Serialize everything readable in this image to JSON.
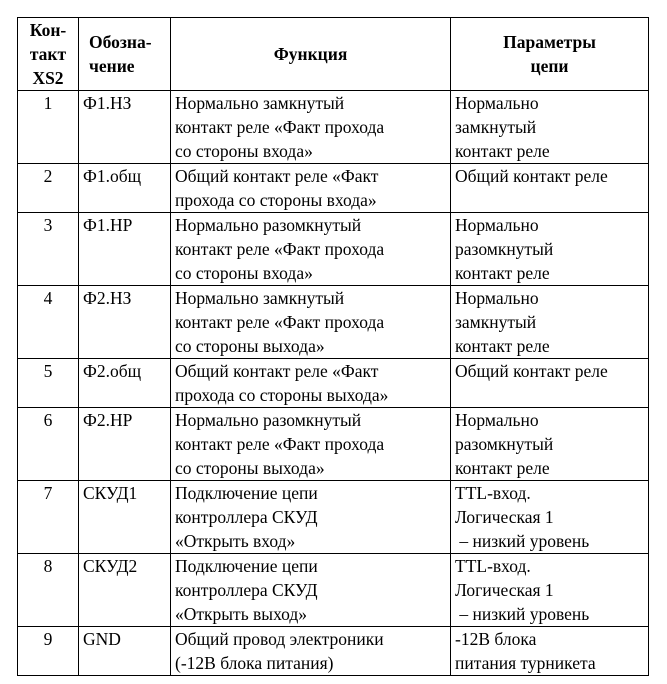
{
  "table": {
    "header": [
      [
        "Кон-",
        "такт",
        "XS2"
      ],
      [
        "Обозна-",
        "чение"
      ],
      [
        "Функция"
      ],
      [
        "Параметры",
        "цепи"
      ]
    ],
    "rows": [
      [
        [
          "1"
        ],
        [
          "Ф1.НЗ"
        ],
        [
          "Нормально замкнутый",
          "контакт реле «Факт прохода",
          "со стороны входа»"
        ],
        [
          "Нормально",
          "замкнутый",
          "контакт реле"
        ]
      ],
      [
        [
          "2"
        ],
        [
          "Ф1.общ"
        ],
        [
          "Общий контакт реле «Факт",
          "прохода со стороны входа»"
        ],
        [
          "Общий контакт реле"
        ]
      ],
      [
        [
          "3"
        ],
        [
          "Ф1.НР"
        ],
        [
          "Нормально разомкнутый",
          "контакт реле «Факт прохода",
          "со стороны входа»"
        ],
        [
          "Нормально",
          "разомкнутый",
          "контакт реле"
        ]
      ],
      [
        [
          "4"
        ],
        [
          "Ф2.НЗ"
        ],
        [
          "Нормально замкнутый",
          "контакт реле «Факт прохода",
          "со стороны выхода»"
        ],
        [
          "Нормально",
          "замкнутый",
          "контакт реле"
        ]
      ],
      [
        [
          "5"
        ],
        [
          "Ф2.общ"
        ],
        [
          "Общий контакт реле «Факт",
          "прохода со стороны выхода»"
        ],
        [
          "Общий контакт реле"
        ]
      ],
      [
        [
          "6"
        ],
        [
          "Ф2.НР"
        ],
        [
          "Нормально разомкнутый",
          "контакт реле «Факт прохода",
          "со стороны выхода»"
        ],
        [
          "Нормально",
          "разомкнутый",
          "контакт реле"
        ]
      ],
      [
        [
          "7"
        ],
        [
          "СКУД1"
        ],
        [
          "Подключение цепи",
          "контроллера СКУД",
          "«Открыть вход»"
        ],
        [
          "TTL-вход.",
          "Логическая 1",
          " – низкий уровень"
        ]
      ],
      [
        [
          "8"
        ],
        [
          "СКУД2"
        ],
        [
          "Подключение цепи",
          "контроллера СКУД",
          "«Открыть выход»"
        ],
        [
          "TTL-вход.",
          "Логическая 1",
          " – низкий уровень"
        ]
      ],
      [
        [
          "9"
        ],
        [
          "GND"
        ],
        [
          "Общий провод электроники",
          "(-12В блока питания)"
        ],
        [
          "-12В блока",
          "питания турникета"
        ]
      ]
    ]
  }
}
